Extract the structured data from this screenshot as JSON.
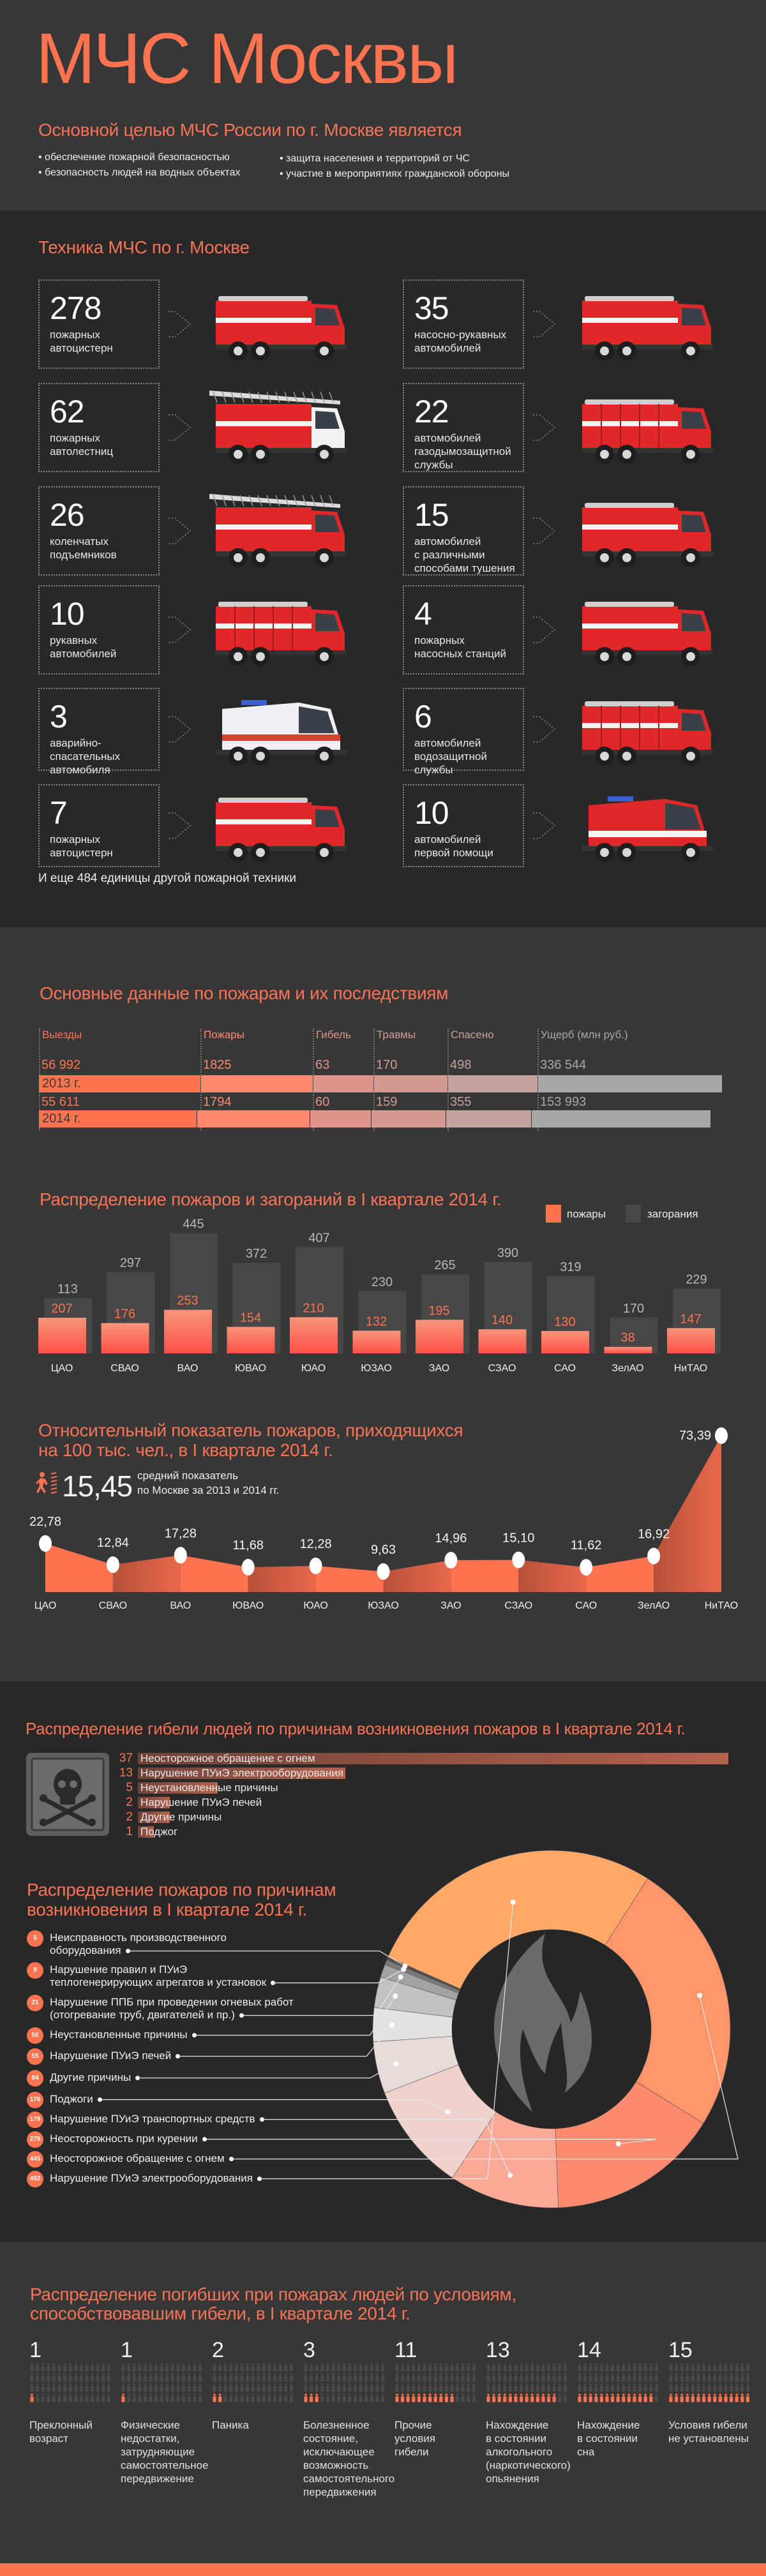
{
  "header": {
    "title": "МЧС Москвы",
    "subtitle": "Основной целью МЧС России по г. Москве является",
    "goals": [
      "• обеспечение пожарной безопасностью",
      "• безопасность людей на водных объектах",
      "• защита населения и территорий от ЧС",
      "•  участие в мероприятиях гражданской обороны"
    ]
  },
  "equipment": {
    "title": "Техника МЧС по г. Москве",
    "items": [
      {
        "count": "278",
        "label": "пожарных\nавтоцистерн",
        "image": "fire-tanker-truck"
      },
      {
        "count": "35",
        "label": "насосно-рукавных\nавтомобилей",
        "image": "fire-pump-truck"
      },
      {
        "count": "62",
        "label": "пожарных\nавтолестниц",
        "image": "fire-ladder-truck"
      },
      {
        "count": "22",
        "label": "автомобилей\nгазодымозащитной\nслужбы",
        "image": "fire-box-truck"
      },
      {
        "count": "26",
        "label": "коленчатых\nподъемников",
        "image": "aerial-platform-truck"
      },
      {
        "count": "15",
        "label": "автомобилей\nс различными\nспособами тушения",
        "image": "fire-tanker-truck"
      },
      {
        "count": "10",
        "label": "рукавных\nавтомобилей",
        "image": "fire-box-truck"
      },
      {
        "count": "4",
        "label": "пожарных\nнасосных станций",
        "image": "fire-pump-truck"
      },
      {
        "count": "3",
        "label": "аварийно-\nспасательных\nавтомобиля",
        "image": "rescue-van"
      },
      {
        "count": "6",
        "label": "автомобилей\nводозащитной\nслужбы",
        "image": "fire-box-truck"
      },
      {
        "count": "7",
        "label": "пожарных\nавтоцистерн",
        "image": "fire-tanker-truck"
      },
      {
        "count": "10",
        "label": "автомобилей\nпервой помощи",
        "image": "fire-van"
      }
    ],
    "footnote": "И еще 484  единицы другой пожарной техники"
  },
  "fire_stats": {
    "title": "Основные данные по пожарам и их последствиям",
    "columns": [
      "Выезды",
      "Пожары",
      "Гибель",
      "Травмы",
      "Спасено",
      "Ущерб (млн руб.)"
    ],
    "column_colors": [
      "#ff7350",
      "#ff8a6e",
      "#e0958a",
      "#d39a92",
      "#c4a29e",
      "#a8a8a8"
    ],
    "rows": [
      {
        "year": "2013 г.",
        "values": [
          "56 992",
          "1825",
          "63",
          "170",
          "498",
          "336 544"
        ]
      },
      {
        "year": "2014 г.",
        "values": [
          "55 611",
          "1794",
          "60",
          "159",
          "355",
          "153 993"
        ]
      }
    ]
  },
  "chart_data": [
    {
      "type": "bar",
      "title": "Распределение пожаров и загораний в I квартале 2014 г.",
      "categories": [
        "ЦАО",
        "СВАО",
        "ВАО",
        "ЮВАО",
        "ЮАО",
        "ЮЗАО",
        "ЗАО",
        "СЗАО",
        "САО",
        "ЗелАО",
        "НиТАО"
      ],
      "series": [
        {
          "name": "пожары",
          "color": "#ff7350",
          "values": [
            207,
            176,
            253,
            154,
            210,
            132,
            195,
            140,
            130,
            38,
            147
          ]
        },
        {
          "name": "загорания",
          "color": "#474747",
          "values": [
            113,
            297,
            445,
            372,
            407,
            230,
            265,
            390,
            319,
            170,
            229
          ]
        }
      ],
      "stacked": true,
      "legend": "top-right"
    },
    {
      "type": "area",
      "title": "Относительный показатель пожаров, приходящихся\nна 100 тыс. чел., в I квартале 2014 г.",
      "categories": [
        "ЦАО",
        "СВАО",
        "ВАО",
        "ЮВАО",
        "ЮАО",
        "ЮЗАО",
        "ЗАО",
        "СЗАО",
        "САО",
        "ЗелАО",
        "НиТАО"
      ],
      "values": [
        22.78,
        12.84,
        17.28,
        11.68,
        12.28,
        9.63,
        14.96,
        15.1,
        11.62,
        16.92,
        73.39
      ],
      "labels": [
        "22,78",
        "12,84",
        "17,28",
        "11,68",
        "12,28",
        "9,63",
        "14,96",
        "15,10",
        "11,62",
        "16,92",
        "73,39"
      ],
      "average": {
        "value": "15,45",
        "text_1": "средний показатель",
        "text_2": "по Москве за 2013 и 2014 гг.",
        "icon": "running-person-fire-icon"
      }
    },
    {
      "type": "bar",
      "orientation": "horizontal",
      "title": "Распределение гибели людей по причинам возникновения пожаров в I квартале 2014 г.",
      "icon": "skull-crossbones-icon",
      "categories": [
        "Неосторожное обращение с огнем",
        "Нарушение ПУиЭ электрооборудования",
        "Неустановленные причины",
        "Нарушение ПУиЭ печей",
        "Другие причины",
        "Поджог"
      ],
      "values": [
        37,
        13,
        5,
        2,
        2,
        1
      ]
    },
    {
      "type": "pie",
      "donut": true,
      "title": "Распределение пожаров по причинам\nвозникновения в I квартале 2014 г.",
      "center_icon": "flame-icon",
      "items": [
        {
          "value": 5,
          "label": "Неисправность производственного\nоборудования",
          "color": "#4f4f4f"
        },
        {
          "value": 8,
          "label": "Нарушение правил и ПУиЭ\nтеплогенерирующих агрегатов и установок",
          "color": "#7a7a7a"
        },
        {
          "value": 21,
          "label": "Нарушение ППБ при проведении огневых работ\n(отогревание труб, двигателей и пр.)",
          "color": "#a2a2a2"
        },
        {
          "value": 50,
          "label": "Неустановленные причины",
          "color": "#c2c2c2"
        },
        {
          "value": 55,
          "label": "Нарушение ПУиЭ печей",
          "color": "#e2e2e2"
        },
        {
          "value": 84,
          "label": "Другие причины",
          "color": "#e8dcda"
        },
        {
          "value": 176,
          "label": "Поджоги",
          "color": "#f0d2cd"
        },
        {
          "value": 179,
          "label": "Нарушение ПУиЭ транспортных средств",
          "color": "#f9a996"
        },
        {
          "value": 279,
          "label": "Неосторожность при курении",
          "color": "#fc8a6e"
        },
        {
          "value": 445,
          "label": "Неосторожное обращение с огнем",
          "color": "#ff956a"
        },
        {
          "value": 492,
          "label": "Нарушение ПУиЭ электрооборудования",
          "color": "#ffa868"
        }
      ]
    },
    {
      "type": "bar",
      "style": "pictograph",
      "title": "Распределение погибших при пожарах людей по условиям,\nспособствовавшим гибели, в I квартале 2014 г.",
      "icon": "person-icon",
      "items": [
        {
          "value": 1,
          "label": "Преклонный\nвозраст"
        },
        {
          "value": 1,
          "label": "Физические\nнедостатки,\nзатрудняющие\nсамостоятельное\nпередвижение"
        },
        {
          "value": 2,
          "label": "Паника"
        },
        {
          "value": 3,
          "label": "Болезненное\nсостояние,\nисключающее\nвозможность\nсамостоятельного\nпередвижения"
        },
        {
          "value": 11,
          "label": "Прочие\nусловия\nгибели"
        },
        {
          "value": 13,
          "label": "Нахождение\nв состоянии\nалкогольного\n(наркотического)\nопьянения"
        },
        {
          "value": 14,
          "label": "Нахождение\nв состоянии\nсна"
        },
        {
          "value": 15,
          "label": "Условия гибели\nне установлены"
        }
      ]
    }
  ],
  "colors": {
    "accent": "#ff7350",
    "bg_light": "#373737",
    "bg_dark": "#282828"
  }
}
